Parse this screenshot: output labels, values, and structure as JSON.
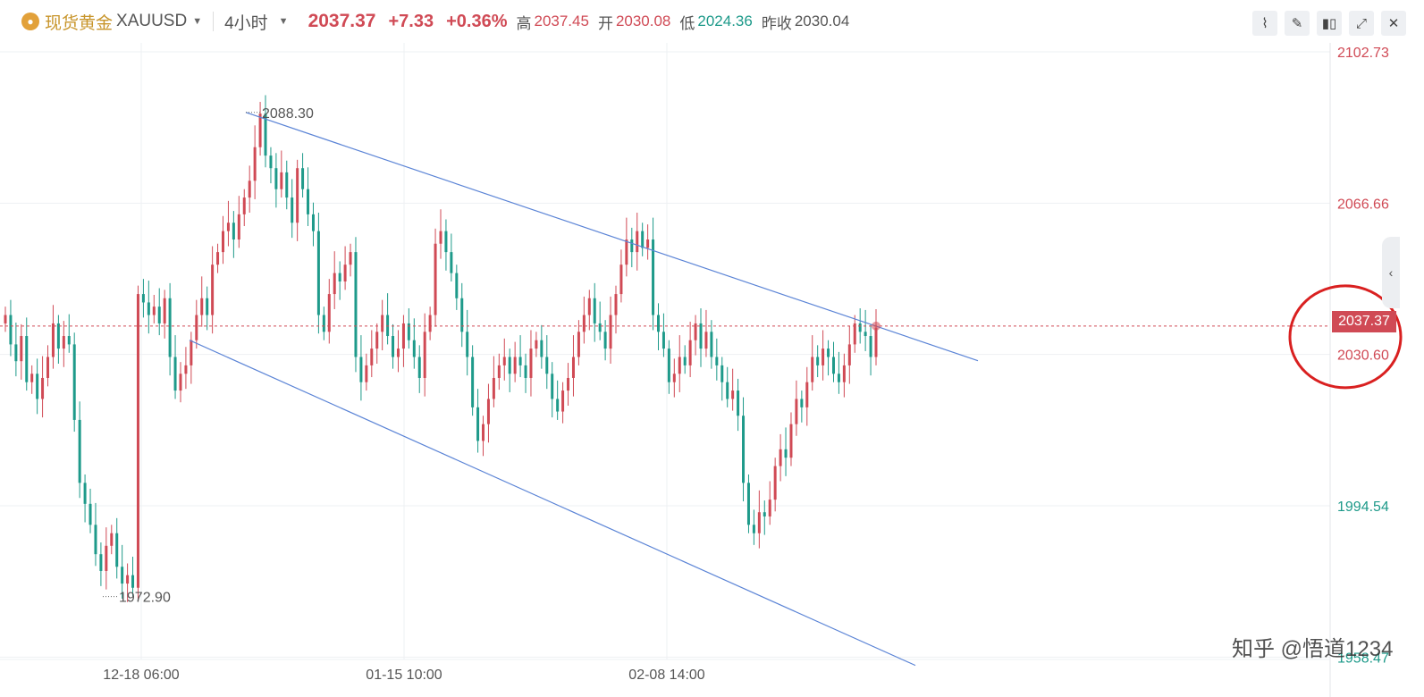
{
  "header": {
    "symbol_cn": "现货黄金",
    "symbol": "XAUUSD",
    "period": "4小时",
    "price": "2037.37",
    "change": "+7.33",
    "change_pct": "+0.36%",
    "high_label": "高",
    "high": "2037.45",
    "open_label": "开",
    "open": "2030.08",
    "low_label": "低",
    "low": "2024.36",
    "prev_label": "昨收",
    "prev_close": "2030.04"
  },
  "toolbar": {
    "icons": [
      "line-style-icon",
      "draw-icon",
      "candle-type-icon",
      "expand-icon",
      "close-icon"
    ]
  },
  "colors": {
    "up": "#d04a55",
    "down": "#1e9a8a",
    "channel": "#5b84d6",
    "circle": "#d92020"
  },
  "price_tag": "2037.37",
  "annotations": {
    "high_mark": "2088.30",
    "low_mark": "1972.90"
  },
  "watermark": "知乎 @悟道1234",
  "chart_data": {
    "type": "candlestick",
    "title": "",
    "xlabel": "",
    "ylabel": "",
    "ylim": [
      1958.5,
      2104.5
    ],
    "y_ticks": [
      {
        "label": "2102.73",
        "value": 2102.73,
        "color": "#d04a55"
      },
      {
        "label": "2066.66",
        "value": 2066.66,
        "color": "#d04a55"
      },
      {
        "label": "2030.60",
        "value": 2030.6,
        "color": "#d04a55"
      },
      {
        "label": "1994.54",
        "value": 1994.54,
        "color": "#1e9a8a"
      },
      {
        "label": "1958.47",
        "value": 1958.47,
        "color": "#1e9a8a"
      }
    ],
    "x_ticks": [
      "12-18 06:00",
      "01-15 10:00",
      "02-08 14:00"
    ],
    "current_price": 2037.37,
    "series_close": [
      2040,
      2033,
      2029,
      2035,
      2024,
      2026,
      2020,
      2025,
      2030,
      2038,
      2032,
      2035,
      2033,
      2015,
      2000,
      1995,
      1990,
      1983,
      1979,
      1985,
      1988,
      1980,
      1976,
      1978,
      1975,
      2045,
      2043,
      2040,
      2042,
      2038,
      2044,
      2030,
      2022,
      2026,
      2028,
      2034,
      2040,
      2044,
      2040,
      2052,
      2055,
      2060,
      2062,
      2058,
      2064,
      2068,
      2072,
      2080,
      2088,
      2078,
      2075,
      2070,
      2074,
      2068,
      2062,
      2075,
      2070,
      2064,
      2060,
      2040,
      2036,
      2045,
      2050,
      2048,
      2052,
      2055,
      2030,
      2024,
      2028,
      2032,
      2036,
      2040,
      2035,
      2030,
      2032,
      2038,
      2034,
      2030,
      2025,
      2036,
      2040,
      2057,
      2060,
      2055,
      2050,
      2044,
      2036,
      2030,
      2018,
      2010,
      2014,
      2020,
      2025,
      2028,
      2030,
      2026,
      2030,
      2028,
      2025,
      2032,
      2034,
      2030,
      2026,
      2020,
      2017,
      2022,
      2025,
      2030,
      2036,
      2040,
      2044,
      2038,
      2036,
      2032,
      2040,
      2045,
      2052,
      2058,
      2055,
      2060,
      2056,
      2058,
      2040,
      2036,
      2032,
      2024,
      2026,
      2030,
      2028,
      2034,
      2038,
      2032,
      2036,
      2030,
      2028,
      2024,
      2020,
      2022,
      2016,
      2000,
      1990,
      1988,
      1993,
      1992,
      1996,
      2004,
      2008,
      2006,
      2014,
      2020,
      2018,
      2024,
      2030,
      2028,
      2032,
      2030,
      2026,
      2024,
      2028,
      2033,
      2038,
      2036,
      2035,
      2030,
      2037
    ],
    "high_mark": 2088.3,
    "low_mark": 1972.9
  }
}
